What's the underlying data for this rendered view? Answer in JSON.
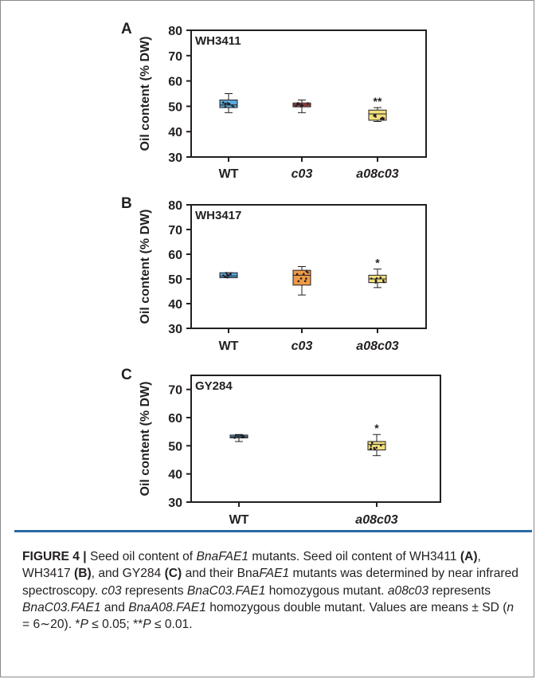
{
  "chart_data": [
    {
      "type": "box",
      "panel_label": "A",
      "genotype_label": "WH3411",
      "ylabel": "Oil content (% DW)",
      "ylim": [
        30,
        80
      ],
      "yticks": [
        30,
        40,
        50,
        60,
        70,
        80
      ],
      "categories": [
        "WT",
        "c03",
        "a08c03"
      ],
      "boxes": [
        {
          "q1": 49.5,
          "median": 50.5,
          "q3": 52.5,
          "min": 47.5,
          "max": 55,
          "color": "#5aa9dc",
          "sig": ""
        },
        {
          "q1": 49.8,
          "median": 50.5,
          "q3": 51.3,
          "min": 47.5,
          "max": 52.5,
          "color": "#c0504d",
          "sig": ""
        },
        {
          "q1": 44.5,
          "median": 47,
          "q3": 48.5,
          "min": 44,
          "max": 49.5,
          "color": "#f2e07c",
          "sig": "**"
        }
      ]
    },
    {
      "type": "box",
      "panel_label": "B",
      "genotype_label": "WH3417",
      "ylabel": "Oil content (% DW)",
      "ylim": [
        30,
        80
      ],
      "yticks": [
        30,
        40,
        50,
        60,
        70,
        80
      ],
      "categories": [
        "WT",
        "c03",
        "a08c03"
      ],
      "boxes": [
        {
          "q1": 50.5,
          "median": 51.2,
          "q3": 52.5,
          "min": 50.5,
          "max": 52.5,
          "color": "#5aa9dc",
          "sig": ""
        },
        {
          "q1": 47.5,
          "median": 51.5,
          "q3": 53.5,
          "min": 43.5,
          "max": 55,
          "color": "#ef9a48",
          "sig": ""
        },
        {
          "q1": 48.5,
          "median": 50,
          "q3": 51.5,
          "min": 46.5,
          "max": 54,
          "color": "#f2e07c",
          "sig": "*"
        }
      ]
    },
    {
      "type": "box",
      "panel_label": "C",
      "genotype_label": "GY284",
      "ylabel": "Oil content (% DW)",
      "ylim": [
        30,
        75
      ],
      "yticks": [
        30,
        40,
        50,
        60,
        70
      ],
      "categories": [
        "WT",
        "a08c03"
      ],
      "boxes": [
        {
          "q1": 52.8,
          "median": 53.2,
          "q3": 53.8,
          "min": 51.5,
          "max": 54,
          "color": "#5aa9dc",
          "sig": ""
        },
        {
          "q1": 48.5,
          "median": 50.5,
          "q3": 51.5,
          "min": 46.5,
          "max": 54,
          "color": "#f2e07c",
          "sig": "*"
        }
      ]
    }
  ],
  "caption": {
    "figure_label": "FIGURE 4 |",
    "t1": " Seed oil content of ",
    "g1": "BnaFAE1",
    "t2": " mutants. Seed oil content of WH3411 ",
    "pa": "(A)",
    "t3": ", WH3417 ",
    "pb": "(B)",
    "t4": ", and GY284 ",
    "pc": "(C)",
    "t5": " and their Bna",
    "g2": "FAE1",
    "t6": " mutants was determined by near infrared spectroscopy. ",
    "g3": "c03",
    "t7": " represents ",
    "g4": "BnaC03.FAE1",
    "t8": " homozygous mutant. ",
    "g5": "a08c03",
    "t9": " represents ",
    "g6": "BnaC03.FAE1",
    "t10": " and ",
    "g7": "BnaA08.FAE1",
    "t11": " homozygous double mutant. Values are means ± SD (",
    "g8": "n",
    "t12": " = 6∼20). *",
    "g9": "P",
    "t13": " ≤ 0.05; **",
    "g10": "P",
    "t14": " ≤ 0.01."
  }
}
